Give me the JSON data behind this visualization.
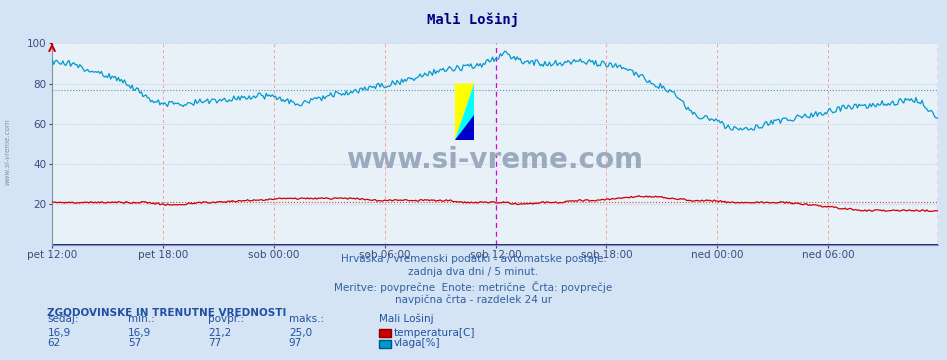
{
  "title": "Mali Lošinj",
  "title_color": "#000080",
  "bg_color": "#d4e4f4",
  "plot_bg_color": "#e8f0f8",
  "grid_color": "#b0bcd0",
  "ylim": [
    0,
    100
  ],
  "yticks": [
    20,
    40,
    60,
    80,
    100
  ],
  "xlabel_color": "#404880",
  "xtick_labels": [
    "pet 12:00",
    "pet 18:00",
    "sob 00:00",
    "sob 06:00",
    "sob 12:00",
    "sob 18:00",
    "ned 00:00",
    "ned 06:00"
  ],
  "n_points": 576,
  "temp_color": "#cc0000",
  "hum_color": "#0099cc",
  "vline_color_day": "#dd00dd",
  "vline_color_6h": "#ff9999",
  "hline_hum_avg": "#4499bb",
  "hline_temp_avg": "#cc4444",
  "watermark": "www.si-vreme.com",
  "watermark_color": "#9baabf",
  "subtitle1": "Hrvaška / vremenski podatki - avtomatske postaje.",
  "subtitle2": "zadnja dva dni / 5 minut.",
  "subtitle3": "Meritve: povprečne  Enote: metrične  Črta: povprečje",
  "subtitle4": "navpična črta - razdelek 24 ur",
  "subtitle_color": "#3060a0",
  "footer_title": "ZGODOVINSKE IN TRENUTNE VREDNOSTI",
  "footer_color": "#2050a0",
  "col_sedaj": "sedaj:",
  "col_min": "min.:",
  "col_povpr": "povpr.:",
  "col_maks": "maks.:",
  "station_name": "Mali Lošinj",
  "temp_sedaj": "16,9",
  "temp_min": "16,9",
  "temp_povpr": "21,2",
  "temp_maks": "25,0",
  "hum_sedaj": "62",
  "hum_min": "57",
  "hum_povpr": "77",
  "hum_maks": "97",
  "legend_temp": "temperatura[C]",
  "legend_hum": "vlaga[%]",
  "left_label": "www.si-vreme.com",
  "hum_avg_val": 77,
  "temp_avg_val": 21
}
